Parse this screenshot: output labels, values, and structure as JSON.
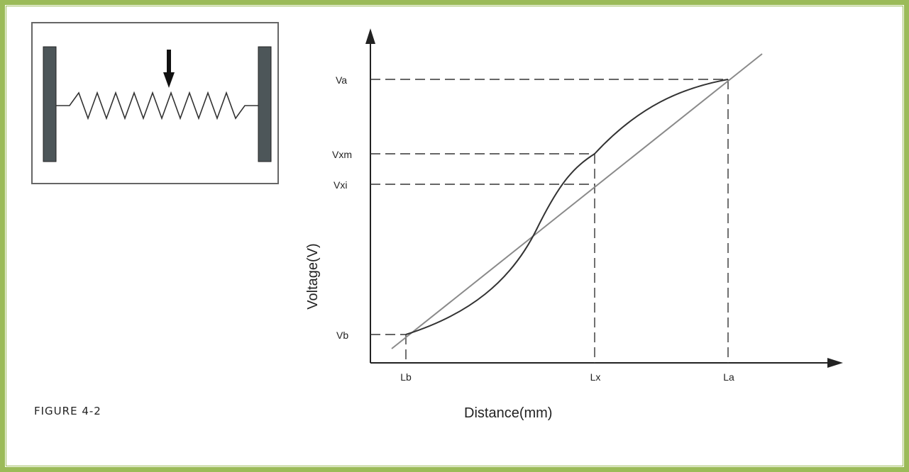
{
  "figure": {
    "caption": "FIGURE 4-2"
  },
  "chart_data": {
    "type": "line",
    "xlabel": "Distance(mm)",
    "ylabel": "Voltage(V)",
    "x_ticks": [
      "Lb",
      "Lx",
      "La"
    ],
    "y_ticks": [
      "Va",
      "Vxm",
      "Vxi",
      "Vb"
    ],
    "series": [
      {
        "kind": "ideal-linear",
        "description_points": [
          "(Lb,Vb)",
          "(Lx,Vxi)",
          "(La,Va)"
        ]
      },
      {
        "kind": "measured-curve",
        "description_points": [
          "(Lb,Vb)",
          "(Lx,Vxm)",
          "(La,Va)"
        ]
      }
    ],
    "grid": false
  },
  "colors": {
    "frame_border": "#9bbb59",
    "bar": "#4d5659",
    "line": "#333333"
  },
  "icons": {
    "wiper": "down-arrow-icon"
  }
}
